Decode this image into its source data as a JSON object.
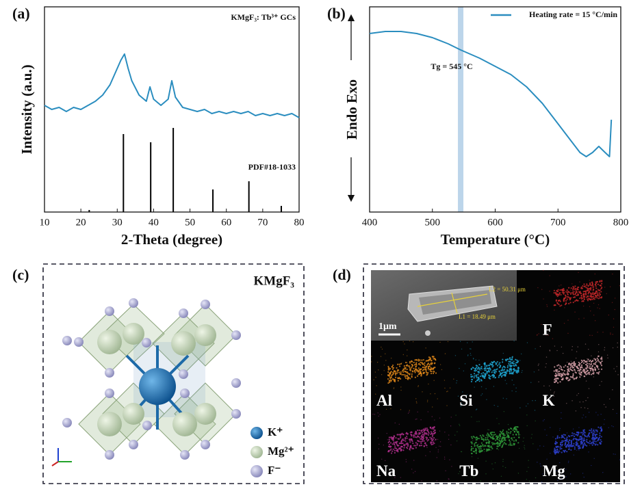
{
  "chart_data": [
    {
      "type": "line",
      "panel": "(a)",
      "xlabel": "2-Theta (degree)",
      "ylabel": "Intensity (a.u.)",
      "xlim": [
        10,
        80
      ],
      "xticks": [
        10,
        20,
        30,
        40,
        50,
        60,
        70,
        80
      ],
      "ylim": [
        0,
        100
      ],
      "series": [
        {
          "name": "KMgF₃: Tb³⁺ GCs",
          "color": "#2a8dbf",
          "x": [
            10,
            12,
            14,
            16,
            18,
            20,
            22,
            24,
            26,
            28,
            30,
            31,
            32,
            33,
            34,
            36,
            38,
            39,
            40,
            42,
            44,
            45,
            46,
            48,
            50,
            52,
            54,
            56,
            58,
            60,
            62,
            64,
            66,
            68,
            70,
            72,
            74,
            76,
            78,
            80
          ],
          "values": [
            52,
            50,
            51,
            49,
            51,
            50,
            52,
            54,
            57,
            62,
            70,
            74,
            77,
            70,
            64,
            57,
            54,
            61,
            55,
            52,
            55,
            64,
            56,
            51,
            50,
            49,
            50,
            48,
            49,
            48,
            49,
            48,
            49,
            47,
            48,
            47,
            48,
            47,
            48,
            46
          ]
        },
        {
          "name": "PDF#18-1033",
          "type": "stem",
          "color": "#000000",
          "x": [
            22.3,
            31.7,
            39.2,
            45.4,
            56.3,
            66.2,
            75.1
          ],
          "values": [
            1,
            38,
            34,
            41,
            11,
            15,
            3
          ]
        }
      ]
    },
    {
      "type": "line",
      "panel": "(b)",
      "xlabel": "Temperature (°C)",
      "ylabel": "Endo Exo",
      "xlim": [
        400,
        800
      ],
      "xticks": [
        400,
        500,
        600,
        700,
        800
      ],
      "ylim": [
        0,
        100
      ],
      "legend": "upper right",
      "annotation": {
        "text": "Tg = 545 °C",
        "x": 545,
        "color": "#bcd5ea"
      },
      "series": [
        {
          "name": "Heating rate = 15 °C/min",
          "color": "#2a8dbf",
          "x": [
            400,
            425,
            450,
            475,
            500,
            525,
            545,
            575,
            600,
            625,
            650,
            675,
            700,
            720,
            735,
            745,
            755,
            765,
            775,
            782,
            785
          ],
          "values": [
            87,
            88,
            88,
            87,
            85,
            82,
            79,
            75,
            71,
            67,
            61,
            53,
            43,
            35,
            29,
            27,
            29,
            32,
            29,
            27,
            45
          ]
        }
      ]
    }
  ],
  "panel_c": {
    "label": "(c)",
    "title": "KMgF₃",
    "legend": [
      "K⁺",
      "Mg²⁺",
      "F⁻"
    ]
  },
  "panel_d": {
    "label": "(d)",
    "scale_bar": "1μm",
    "measurements": [
      "L2 = 50.31 μm",
      "L1 = 18.49 μm"
    ],
    "maps": [
      {
        "name": "F",
        "color": "#c8282a"
      },
      {
        "name": "Al",
        "color": "#e38a1a"
      },
      {
        "name": "Si",
        "color": "#1fa9d6"
      },
      {
        "name": "K",
        "color": "#d9a3ab"
      },
      {
        "name": "Na",
        "color": "#b3308f"
      },
      {
        "name": "Tb",
        "color": "#2f9a3a"
      },
      {
        "name": "Mg",
        "color": "#2f44d8"
      }
    ]
  }
}
